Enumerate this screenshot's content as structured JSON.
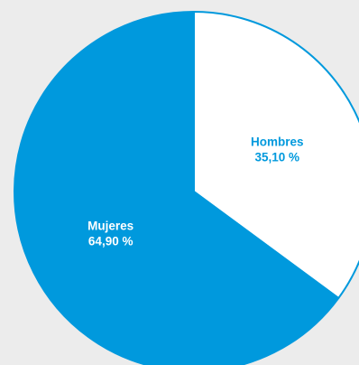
{
  "chart_data": {
    "type": "pie",
    "title": "",
    "legend": "none",
    "slices": [
      {
        "name": "Hombres",
        "value": 35.1,
        "label_value": "35,10 %",
        "fill": "#ffffff",
        "text_color": "#0099dd"
      },
      {
        "name": "Mujeres",
        "value": 64.9,
        "label_value": "64,90 %",
        "fill": "#0099dd",
        "text_color": "#ffffff"
      }
    ],
    "start": "12 o'clock",
    "direction": "clockwise",
    "outline_color": "#0099dd",
    "background": "#ececec"
  }
}
